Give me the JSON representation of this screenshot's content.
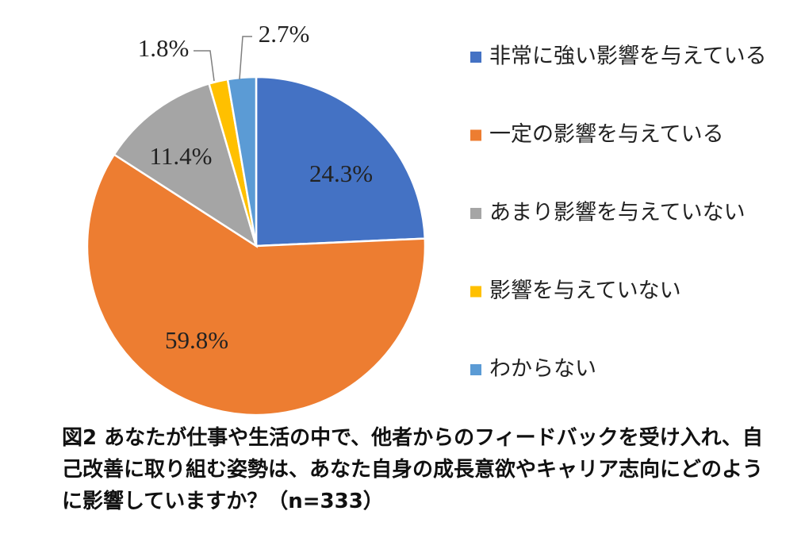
{
  "chart_data": {
    "type": "pie",
    "title": "図2 あなたが仕事や生活の中で、他者からのフィードバックを受け入れ、自己改善に取り組む姿勢は、あなた自身の成長意欲やキャリア志向にどのように影響していますか？（n=333）",
    "slices": [
      {
        "label": "非常に強い影響を与えている",
        "value": 24.3,
        "display": "24.3%",
        "color": "#4472C4"
      },
      {
        "label": "一定の影響を与えている",
        "value": 59.8,
        "display": "59.8%",
        "color": "#ED7D31"
      },
      {
        "label": "あまり影響を与えていない",
        "value": 11.4,
        "display": "11.4%",
        "color": "#A5A5A5"
      },
      {
        "label": "影響を与えていない",
        "value": 1.8,
        "display": "1.8%",
        "color": "#FFC000"
      },
      {
        "label": "わからない",
        "value": 2.7,
        "display": "2.7%",
        "color": "#5B9BD5"
      }
    ],
    "legend_position": "right",
    "start_angle": "top",
    "direction": "clockwise"
  }
}
